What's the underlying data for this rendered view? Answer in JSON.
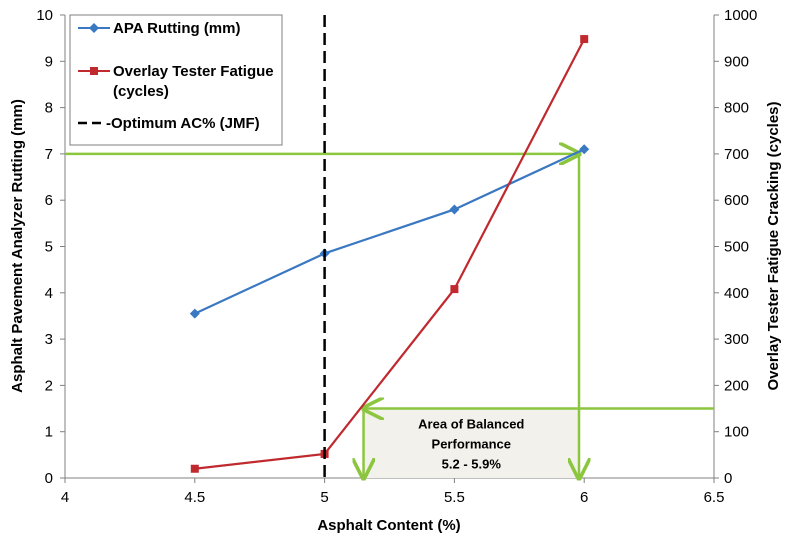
{
  "chart_data": {
    "type": "line",
    "xlabel": "Asphalt Content (%)",
    "ylabel_left": "Asphalt Pavement Analyzer Rutting (mm)",
    "ylabel_right": "Overlay Tester Fatigue Cracking (cycles)",
    "xlim": [
      4,
      6.5
    ],
    "ylim_left": [
      0,
      10
    ],
    "ylim_right": [
      0,
      1000
    ],
    "x_ticks": [
      "4",
      "4.5",
      "5",
      "5.5",
      "6",
      "6.5"
    ],
    "y_left_ticks": [
      "0",
      "1",
      "2",
      "3",
      "4",
      "5",
      "6",
      "7",
      "8",
      "9",
      "10"
    ],
    "y_right_ticks": [
      "0",
      "100",
      "200",
      "300",
      "400",
      "500",
      "600",
      "700",
      "800",
      "900",
      "1000"
    ],
    "grid": false,
    "legend_position": "top-left",
    "series": [
      {
        "name": "APA Rutting (mm)",
        "axis": "left",
        "marker": "diamond",
        "color": "#3a78c2",
        "x": [
          4.5,
          5,
          5.5,
          6
        ],
        "y": [
          3.55,
          4.85,
          5.8,
          7.1
        ]
      },
      {
        "name_lines": [
          "Overlay Tester Fatigue",
          "(cycles)"
        ],
        "axis": "right",
        "marker": "square",
        "color": "#c0292e",
        "x": [
          4.5,
          5,
          5.5,
          6
        ],
        "y": [
          20,
          52,
          408,
          948
        ]
      },
      {
        "name": "-Optimum AC% (JMF)",
        "kind": "vertical-dashed",
        "color": "#000000",
        "x": 5
      }
    ],
    "annotations": {
      "color": "#8cc63f",
      "box_fill": "#f2f1ec",
      "text_lines": [
        "Area of Balanced",
        "Performance",
        "5.2 - 5.9%"
      ],
      "h_ref_left_value": 7,
      "h_ref_right_value": 150,
      "x_range": [
        5.15,
        5.98
      ]
    }
  }
}
